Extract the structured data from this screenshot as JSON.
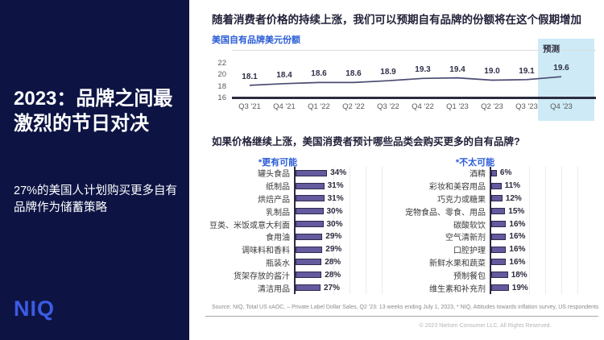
{
  "sidebar": {
    "title": "2023：品牌之间最激烈的节日对决",
    "subtitle": "27%的美国人计划购买更多自有品牌作为储蓄策略",
    "logo": "NIQ"
  },
  "main": {
    "headline": "随着消费者价格的持续上涨，我们可以预期自有品牌的份额将在这个假期增加",
    "question": "如果价格继续上涨，美国消费者预计哪些品类会购买更多的自有品牌?",
    "source": "Source: NIQ, Total US xAOC, – Private Label Dollar Sales, Q2   '23: 13 weeks ending July 1, 2023, * NIQ, Attitudes towards inflation survey, US respondents",
    "copyright": "© 2023 Nielsen Consumer LLC. All Rights Reserved."
  },
  "colors": {
    "sidebar_bg": "#0d1444",
    "logo_blue": "#3c5ce5",
    "accent_blue": "#2a5cd6",
    "bar_purple": "#645a9e",
    "bar_border": "#2e2a4d",
    "line_color": "#4b4b73",
    "forecast_band": "#cdeaf6",
    "text_dark": "#22223a",
    "axis_gray": "#595959"
  },
  "chart_data": [
    {
      "type": "line",
      "title": "美国自有品牌美元份额",
      "x": [
        "Q3 '21",
        "Q4 '21",
        "Q1 '22",
        "Q2 '22",
        "Q3 '22",
        "Q4 '22",
        "Q1 '23",
        "Q2 '23",
        "Q3 '23",
        "Q4 '23"
      ],
      "values": [
        18.1,
        18.4,
        18.6,
        18.6,
        18.9,
        19.3,
        19.4,
        19.0,
        19.1,
        19.6
      ],
      "ylim": [
        16,
        22
      ],
      "yticks": [
        22,
        20,
        18,
        16
      ],
      "grid": false,
      "forecast_label": "预测",
      "forecast_x": "Q4 '23"
    },
    {
      "type": "bar",
      "title": "*更有可能",
      "orientation": "horizontal",
      "categories": [
        "罐头食品",
        "纸制品",
        "烘焙产品",
        "乳制品",
        "豆类、米饭或意大利面",
        "食用油",
        "调味料和香料",
        "瓶装水",
        "货架存放的酱汁",
        "清洁用品"
      ],
      "values": [
        34,
        31,
        31,
        30,
        30,
        29,
        29,
        28,
        28,
        27
      ],
      "unit": "%"
    },
    {
      "type": "bar",
      "title": "*不太可能",
      "orientation": "horizontal",
      "categories": [
        "酒精",
        "彩妆和美容用品",
        "巧克力或糖果",
        "宠物食品、零食、用品",
        "碳酸软饮",
        "空气清新剂",
        "口腔护理",
        "新鲜水果和蔬菜",
        "预制餐包",
        "维生素和补充剂"
      ],
      "values": [
        6,
        11,
        12,
        15,
        16,
        16,
        16,
        16,
        18,
        19
      ],
      "unit": "%"
    }
  ]
}
